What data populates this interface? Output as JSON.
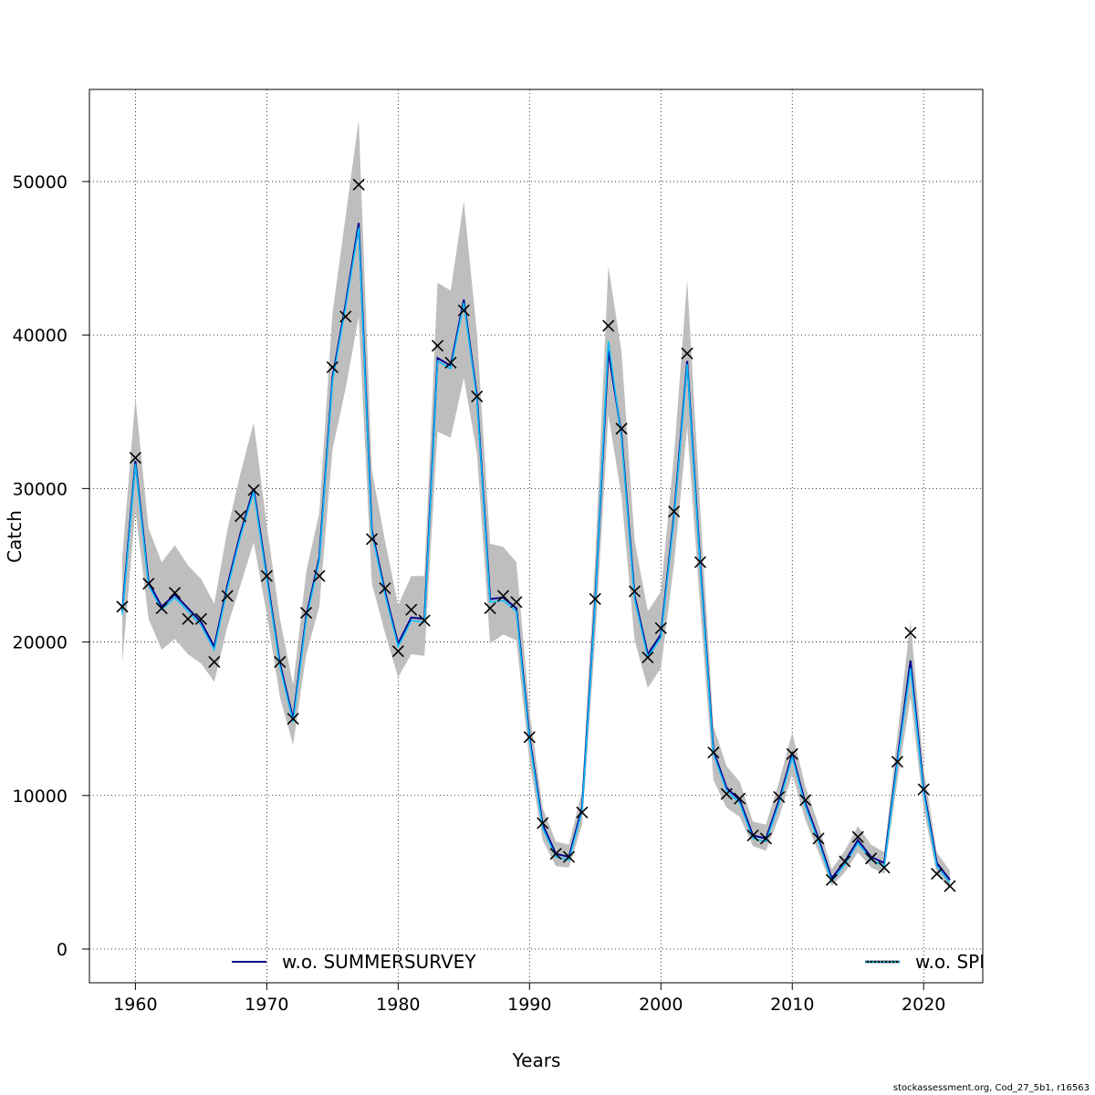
{
  "footer": "stockassessment.org, Cod_27_5b1, r16563",
  "chart_data": {
    "type": "line",
    "title": "",
    "xlabel": "Years",
    "ylabel": "Catch",
    "xlim": [
      1956.5,
      2024.5
    ],
    "ylim": [
      -2200,
      56000
    ],
    "xticks": [
      1960,
      1970,
      1980,
      1990,
      2000,
      2010,
      2020
    ],
    "yticks": [
      0,
      10000,
      20000,
      30000,
      40000,
      50000
    ],
    "grid": true,
    "legend_placement": "bottom",
    "colors": {
      "band": "#bebebe",
      "summer": "#00008b",
      "spring": "#00bfff",
      "observed": "#000000"
    },
    "series": [
      {
        "name": "w.o. SUMMERSURVEY",
        "style": "solid",
        "x": [
          1959,
          1960,
          1961,
          1962,
          1963,
          1964,
          1965,
          1966,
          1967,
          1968,
          1969,
          1970,
          1971,
          1972,
          1973,
          1974,
          1975,
          1976,
          1977,
          1978,
          1979,
          1980,
          1981,
          1982,
          1983,
          1984,
          1985,
          1986,
          1987,
          1988,
          1989,
          1990,
          1991,
          1992,
          1993,
          1994,
          1995,
          1996,
          1997,
          1998,
          1999,
          2000,
          2001,
          2002,
          2003,
          2004,
          2005,
          2006,
          2007,
          2008,
          2009,
          2010,
          2011,
          2012,
          2013,
          2014,
          2015,
          2016,
          2017,
          2018,
          2019,
          2020,
          2021,
          2022
        ],
        "values": [
          22000,
          31800,
          23900,
          22300,
          23100,
          22200,
          21300,
          19700,
          23700,
          27100,
          30000,
          24300,
          18600,
          15000,
          21700,
          25500,
          37200,
          42000,
          47300,
          27300,
          23300,
          19900,
          21600,
          21500,
          38500,
          38000,
          42300,
          36000,
          22800,
          22900,
          22200,
          13800,
          8100,
          6200,
          6000,
          9200,
          22700,
          39000,
          33500,
          23000,
          19200,
          20500,
          28300,
          38300,
          25000,
          12900,
          10500,
          9700,
          7400,
          7200,
          9700,
          12700,
          9500,
          7200,
          4600,
          5700,
          7100,
          6000,
          5600,
          12300,
          18800,
          10400,
          5600,
          4500
        ],
        "band_lower": [
          18700,
          28600,
          21500,
          19500,
          20200,
          19200,
          18600,
          17400,
          21000,
          23700,
          26500,
          21800,
          16400,
          13300,
          19200,
          22300,
          32500,
          36500,
          41200,
          23800,
          20600,
          17700,
          19200,
          19100,
          33700,
          33300,
          37200,
          32300,
          19900,
          20500,
          20100,
          12200,
          7100,
          5400,
          5300,
          8100,
          20200,
          34800,
          29500,
          20100,
          17000,
          18300,
          25100,
          34000,
          22100,
          11000,
          9200,
          8600,
          6700,
          6400,
          8600,
          11400,
          8400,
          6300,
          4100,
          5000,
          6300,
          5300,
          4900,
          10900,
          16400,
          9100,
          4900,
          3900
        ],
        "band_upper": [
          25500,
          35900,
          27400,
          25200,
          26300,
          25000,
          24100,
          22500,
          27300,
          31000,
          34300,
          27600,
          21500,
          17200,
          24600,
          28400,
          41400,
          47700,
          54000,
          31200,
          26600,
          22400,
          24300,
          24300,
          43400,
          42900,
          48700,
          40100,
          26400,
          26200,
          25200,
          15500,
          9200,
          7000,
          6800,
          10300,
          25500,
          44500,
          38900,
          26600,
          22000,
          23300,
          32200,
          43600,
          28500,
          14500,
          11900,
          10900,
          8300,
          8100,
          10900,
          14100,
          10600,
          8100,
          5200,
          6400,
          8000,
          6800,
          6300,
          13900,
          21400,
          11800,
          6300,
          5100
        ]
      },
      {
        "name": "w.o. SPRINGSURVEY",
        "style": "dotted",
        "x": [
          1959,
          1960,
          1961,
          1962,
          1963,
          1964,
          1965,
          1966,
          1967,
          1968,
          1969,
          1970,
          1971,
          1972,
          1973,
          1974,
          1975,
          1976,
          1977,
          1978,
          1979,
          1980,
          1981,
          1982,
          1983,
          1984,
          1985,
          1986,
          1987,
          1988,
          1989,
          1990,
          1991,
          1992,
          1993,
          1994,
          1995,
          1996,
          1997,
          1998,
          1999,
          2000,
          2001,
          2002,
          2003,
          2004,
          2005,
          2006,
          2007,
          2008,
          2009,
          2010,
          2011,
          2012,
          2013,
          2014,
          2015,
          2016,
          2017,
          2018,
          2019,
          2020,
          2021,
          2022
        ],
        "values": [
          21800,
          31600,
          23700,
          22100,
          22900,
          22000,
          21100,
          19500,
          23500,
          26900,
          29800,
          24100,
          18400,
          14800,
          21500,
          25300,
          37000,
          41800,
          47000,
          27100,
          23100,
          19700,
          21400,
          21300,
          38300,
          37800,
          42100,
          35800,
          22600,
          22700,
          22000,
          13600,
          7900,
          6000,
          5800,
          9000,
          22500,
          39600,
          33300,
          22800,
          19000,
          20300,
          28100,
          38100,
          24800,
          12700,
          10300,
          9500,
          7200,
          7000,
          9500,
          12500,
          9300,
          7000,
          4400,
          5500,
          6900,
          5800,
          5400,
          12100,
          18300,
          10200,
          5400,
          4300
        ]
      }
    ],
    "observed": {
      "marker": "x",
      "x": [
        1959,
        1960,
        1961,
        1962,
        1963,
        1964,
        1965,
        1966,
        1967,
        1968,
        1969,
        1970,
        1971,
        1972,
        1973,
        1974,
        1975,
        1976,
        1977,
        1978,
        1979,
        1980,
        1981,
        1982,
        1983,
        1984,
        1985,
        1986,
        1987,
        1988,
        1989,
        1990,
        1991,
        1992,
        1993,
        1994,
        1995,
        1996,
        1997,
        1998,
        1999,
        2000,
        2001,
        2002,
        2003,
        2004,
        2005,
        2006,
        2007,
        2008,
        2009,
        2010,
        2011,
        2012,
        2013,
        2014,
        2015,
        2016,
        2017,
        2018,
        2019,
        2020,
        2021,
        2022
      ],
      "values": [
        22300,
        32000,
        23800,
        22200,
        23200,
        21500,
        21500,
        18700,
        23000,
        28200,
        29900,
        24300,
        18700,
        15000,
        21900,
        24300,
        37900,
        41200,
        49800,
        26700,
        23500,
        19400,
        22100,
        21400,
        39300,
        38200,
        41600,
        36000,
        22200,
        23000,
        22600,
        13800,
        8200,
        6200,
        6000,
        8900,
        22800,
        40600,
        33900,
        23300,
        19000,
        20900,
        28500,
        38800,
        25200,
        12800,
        10100,
        9800,
        7400,
        7200,
        9900,
        12700,
        9700,
        7200,
        4500,
        5700,
        7300,
        5900,
        5300,
        12200,
        20600,
        10400,
        4900,
        4100
      ]
    }
  }
}
